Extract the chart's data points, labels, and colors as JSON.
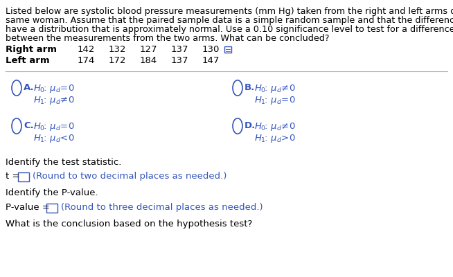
{
  "background_color": "#ffffff",
  "text_color": "#000000",
  "blue_color": "#3355bb",
  "sep_color": "#aaaaaa",
  "para_lines": [
    "Listed below are systolic blood pressure measurements (mm Hg) taken from the right and left arms of the",
    "same woman. Assume that the paired sample data is a simple random sample and that the differences",
    "have a distribution that is approximately normal. Use a 0.10 significance level to test for a difference",
    "between the measurements from the two arms. What can be concluded?"
  ],
  "right_arm_label": "Right arm",
  "left_arm_label": "Left arm",
  "right_vals": [
    "142",
    "132",
    "127",
    "137",
    "130"
  ],
  "left_vals": [
    "174",
    "172",
    "184",
    "137",
    "147"
  ],
  "test_stat_label": "Identify the test statistic.",
  "t_prefix": "t = ",
  "t_hint": "(Round to two decimal places as needed.)",
  "pvalue_label": "Identify the P-value.",
  "pvalue_prefix": "P-value = ",
  "pvalue_hint": "(Round to three decimal places as needed.)",
  "conclusion_label": "What is the conclusion based on the hypothesis test?",
  "fs_para": 9.2,
  "fs_table": 9.5,
  "fs_opt_label": 9.5,
  "fs_opt_math": 9.5,
  "fs_body": 9.5,
  "opt_A": {
    "line1": "$H_0$: $\\mu_d$ = 0",
    "line2": "$H_1$: $\\mu_d$ ≠ 0"
  },
  "opt_B": {
    "line1": "$H_0$: $\\mu_d$ ≠ 0",
    "line2": "$H_1$: $\\mu_d$ = 0"
  },
  "opt_C": {
    "line1": "$H_0$: $\\mu_d$ = 0",
    "line2": "$H_1$: $\\mu_d$ < 0"
  },
  "opt_D": {
    "line1": "$H_0$: $\\mu_d$ ≠ 0",
    "line2": "$H_1$: $\\mu_d$ > 0"
  }
}
